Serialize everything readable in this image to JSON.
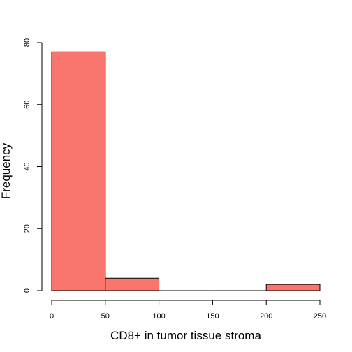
{
  "chart_data": {
    "type": "bar",
    "subtype": "histogram",
    "title": "",
    "xlabel": "CD8+ in tumor tissue stroma",
    "ylabel": "Frequency",
    "bins": [
      {
        "from": 0,
        "to": 50,
        "count": 77
      },
      {
        "from": 50,
        "to": 100,
        "count": 4
      },
      {
        "from": 100,
        "to": 150,
        "count": 0
      },
      {
        "from": 150,
        "to": 200,
        "count": 0
      },
      {
        "from": 200,
        "to": 250,
        "count": 2
      }
    ],
    "xlim": [
      0,
      250
    ],
    "ylim": [
      0,
      80
    ],
    "xticks": [
      "0",
      "50",
      "100",
      "150",
      "200",
      "250"
    ],
    "yticks": [
      "0",
      "20",
      "40",
      "60",
      "80"
    ],
    "grid": false,
    "legend": "none",
    "bar_color": "#F8766D",
    "bar_edge_color": "#000000"
  }
}
